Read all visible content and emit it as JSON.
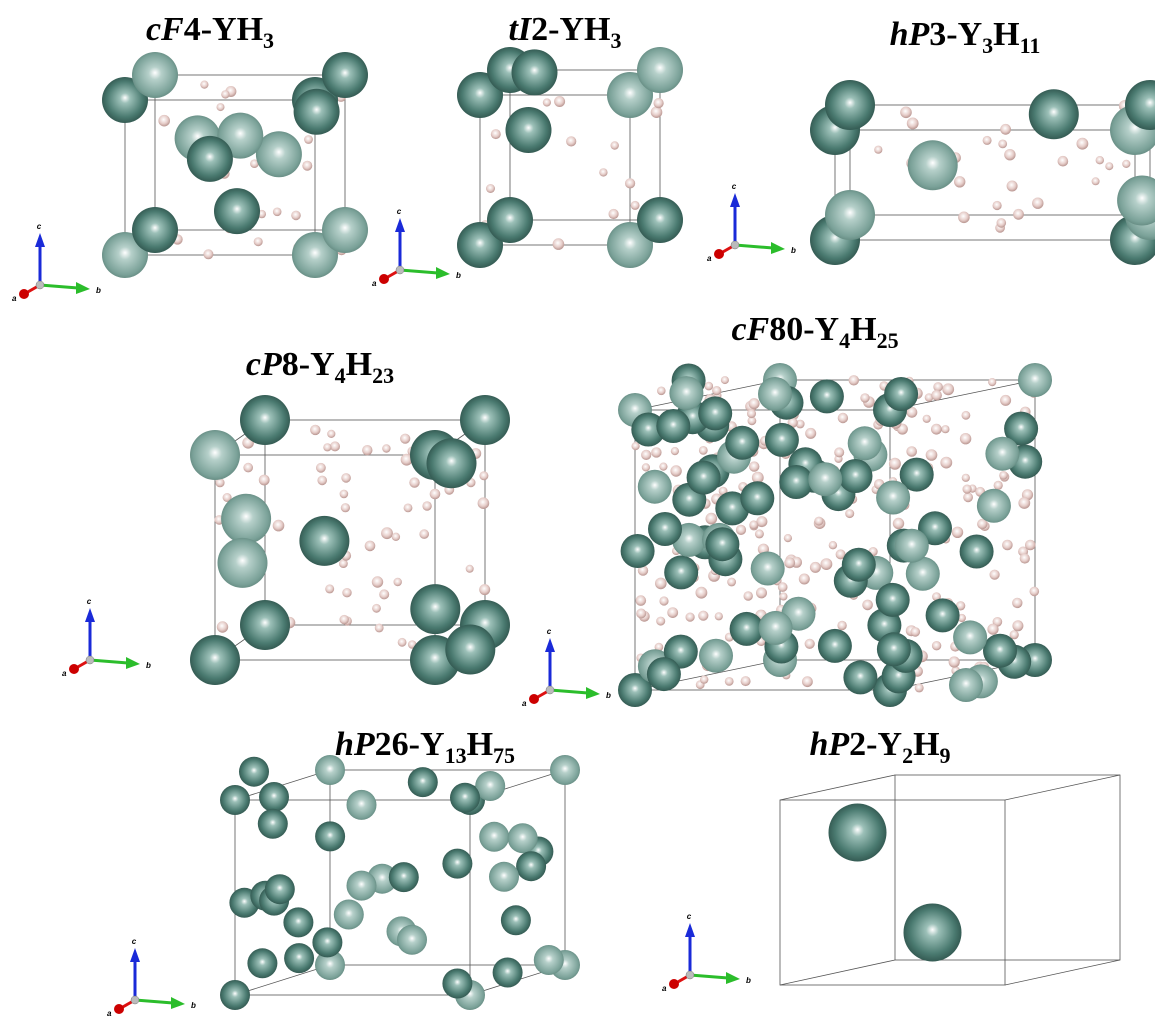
{
  "panels": [
    {
      "title": [
        {
          "text": "c",
          "style": "italic"
        },
        {
          "text": "F",
          "style": "italic"
        },
        {
          "text": "4-YH",
          "style": "normal"
        },
        {
          "text": "3",
          "style": "sub"
        }
      ]
    },
    {
      "title": [
        {
          "text": "tI",
          "style": "italic"
        },
        {
          "text": "2-YH",
          "style": "normal"
        },
        {
          "text": "3",
          "style": "sub"
        }
      ]
    },
    {
      "title": [
        {
          "text": "hP",
          "style": "italic"
        },
        {
          "text": "3-Y",
          "style": "normal"
        },
        {
          "text": "3",
          "style": "sub"
        },
        {
          "text": "H",
          "style": "normal"
        },
        {
          "text": "11",
          "style": "sub"
        }
      ]
    },
    {
      "title": [
        {
          "text": "cP",
          "style": "italic"
        },
        {
          "text": "8-Y",
          "style": "normal"
        },
        {
          "text": "4",
          "style": "sub"
        },
        {
          "text": "H",
          "style": "normal"
        },
        {
          "text": "23",
          "style": "sub"
        }
      ]
    },
    {
      "title": [
        {
          "text": "cF",
          "style": "italic"
        },
        {
          "text": "80-Y",
          "style": "normal"
        },
        {
          "text": "4",
          "style": "sub"
        },
        {
          "text": "H",
          "style": "normal"
        },
        {
          "text": "25",
          "style": "sub"
        }
      ]
    },
    {
      "title": [
        {
          "text": "hP",
          "style": "italic"
        },
        {
          "text": "26-Y",
          "style": "normal"
        },
        {
          "text": "13",
          "style": "sub"
        },
        {
          "text": "H",
          "style": "normal"
        },
        {
          "text": "75",
          "style": "sub"
        }
      ]
    },
    {
      "title": [
        {
          "text": "hP",
          "style": "italic"
        },
        {
          "text": "2-Y",
          "style": "normal"
        },
        {
          "text": "2",
          "style": "sub"
        },
        {
          "text": "H",
          "style": "normal"
        },
        {
          "text": "9",
          "style": "sub"
        }
      ]
    }
  ],
  "axis_labels": {
    "a": "a",
    "b": "b",
    "c": "c"
  }
}
